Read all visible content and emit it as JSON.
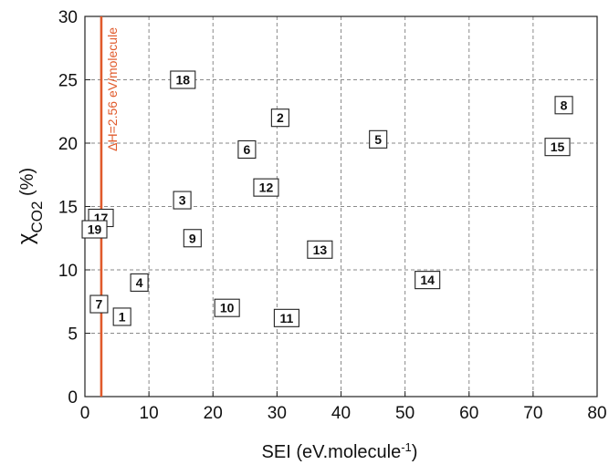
{
  "chart_data": {
    "type": "scatter",
    "xlabel": "SEI (eV.molecule",
    "xlabel_sup": "-1",
    "xlabel_tail": ")",
    "ylabel_base": "χ",
    "ylabel_sub": "CO2",
    "ylabel_tail": " (%)",
    "xlim": [
      0,
      80
    ],
    "ylim": [
      0,
      30
    ],
    "xticks": [
      0,
      10,
      20,
      30,
      40,
      50,
      60,
      70,
      80
    ],
    "yticks": [
      0,
      5,
      10,
      15,
      20,
      25,
      30
    ],
    "grid": true,
    "grid_style": "dashed",
    "points": [
      {
        "label": "1",
        "x": 5.8,
        "y": 6.3
      },
      {
        "label": "2",
        "x": 30.5,
        "y": 22.0
      },
      {
        "label": "3",
        "x": 15.2,
        "y": 15.5
      },
      {
        "label": "4",
        "x": 8.5,
        "y": 9.0
      },
      {
        "label": "5",
        "x": 45.8,
        "y": 20.3
      },
      {
        "label": "6",
        "x": 25.3,
        "y": 19.5
      },
      {
        "label": "7",
        "x": 2.2,
        "y": 7.3
      },
      {
        "label": "8",
        "x": 74.8,
        "y": 23.0
      },
      {
        "label": "9",
        "x": 16.8,
        "y": 12.5
      },
      {
        "label": "10",
        "x": 22.2,
        "y": 7.0
      },
      {
        "label": "11",
        "x": 31.5,
        "y": 6.2
      },
      {
        "label": "12",
        "x": 28.3,
        "y": 16.5
      },
      {
        "label": "13",
        "x": 36.7,
        "y": 11.6
      },
      {
        "label": "14",
        "x": 53.5,
        "y": 9.2
      },
      {
        "label": "15",
        "x": 73.8,
        "y": 19.7
      },
      {
        "label": "17",
        "x": 2.5,
        "y": 14.1
      },
      {
        "label": "18",
        "x": 15.3,
        "y": 25.0
      },
      {
        "label": "19",
        "x": 1.5,
        "y": 13.2
      }
    ],
    "reference_line": {
      "x": 2.56,
      "label": "ΔH=2.56 eV/molecule",
      "color": "#e05a2b"
    }
  }
}
